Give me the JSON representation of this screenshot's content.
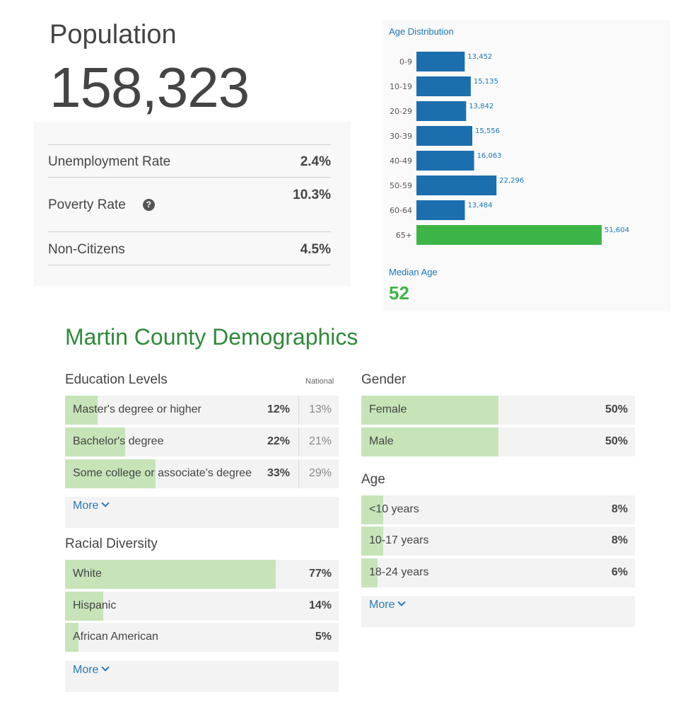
{
  "population": {
    "title": "Population",
    "value": "158,323"
  },
  "stats": [
    {
      "label": "Unemployment Rate",
      "value": "2.4%"
    },
    {
      "label": "Poverty Rate",
      "value": "10.3%"
    },
    {
      "label": "Non-Citizens",
      "value": "4.5%"
    }
  ],
  "age_chart": {
    "title": "Age Distribution",
    "median_label": "Median Age",
    "median_value": "52"
  },
  "chart_data": {
    "type": "bar",
    "orientation": "horizontal",
    "title": "Age Distribution",
    "categories": [
      "0-9",
      "10-19",
      "20-29",
      "30-39",
      "40-49",
      "50-59",
      "60-64",
      "65+"
    ],
    "values": [
      13452,
      15135,
      13842,
      15556,
      16063,
      22296,
      13484,
      51604
    ],
    "labels": [
      "13,452",
      "15,135",
      "13,842",
      "15,556",
      "16,063",
      "22,296",
      "13,484",
      "51,604"
    ],
    "colors": [
      "#1b6fae",
      "#1b6fae",
      "#1b6fae",
      "#1b6fae",
      "#1b6fae",
      "#1b6fae",
      "#1b6fae",
      "#3db546"
    ],
    "xlim": [
      0,
      51604
    ]
  },
  "demographics": {
    "title": "Martin County Demographics",
    "education": {
      "title": "Education Levels",
      "national_header": "National",
      "rows": [
        {
          "label": "Master's degree or higher",
          "value": "12%",
          "pct": 12,
          "national": "13%"
        },
        {
          "label": "Bachelor's degree",
          "value": "22%",
          "pct": 22,
          "national": "21%"
        },
        {
          "label": "Some college or associate's degree",
          "value": "33%",
          "pct": 33,
          "national": "29%"
        }
      ],
      "more": "More"
    },
    "racial": {
      "title": "Racial Diversity",
      "rows": [
        {
          "label": "White",
          "value": "77%",
          "pct": 77
        },
        {
          "label": "Hispanic",
          "value": "14%",
          "pct": 14
        },
        {
          "label": "African American",
          "value": "5%",
          "pct": 5
        }
      ],
      "more": "More"
    },
    "gender": {
      "title": "Gender",
      "rows": [
        {
          "label": "Female",
          "value": "50%",
          "pct": 50
        },
        {
          "label": "Male",
          "value": "50%",
          "pct": 50
        }
      ]
    },
    "age": {
      "title": "Age",
      "rows": [
        {
          "label": "<10 years",
          "value": "8%",
          "pct": 8
        },
        {
          "label": "10-17 years",
          "value": "8%",
          "pct": 8
        },
        {
          "label": "18-24 years",
          "value": "6%",
          "pct": 6
        }
      ],
      "more": "More"
    }
  },
  "colors": {
    "accent_green": "#2f8a3a",
    "link_blue": "#2a7ab8",
    "bar_blue": "#1b6fae",
    "highlight_green": "#3db546",
    "fill_green": "#c6e4b8"
  }
}
